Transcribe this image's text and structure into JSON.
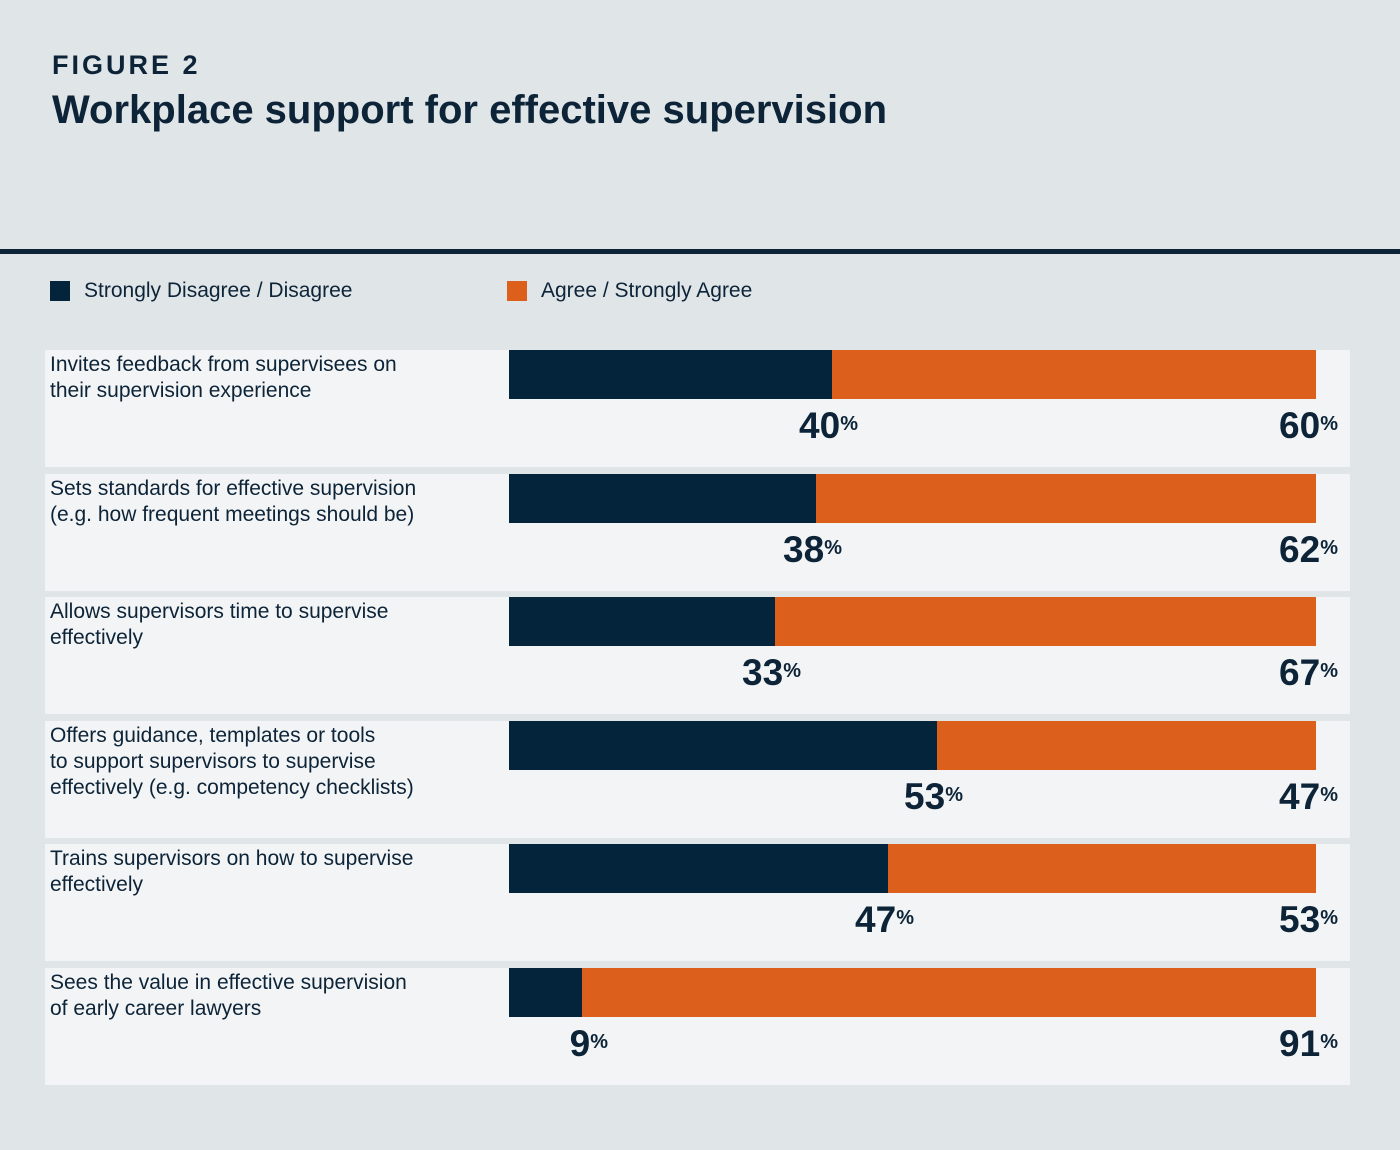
{
  "figure": {
    "label": "FIGURE 2",
    "title": "Workplace support for effective supervision"
  },
  "colors": {
    "disagree": "#03243b",
    "agree": "#dc5f1c",
    "text": "#0d2438"
  },
  "chart_data": {
    "type": "bar",
    "orientation": "horizontal",
    "stacked": true,
    "normalized_to": 100,
    "unit": "%",
    "categories": [
      "Invites feedback from supervisees on their supervision experience",
      "Sets standards for effective supervision (e.g. how frequent meetings should be)",
      "Allows supervisors time to supervise effectively",
      "Offers guidance, templates or tools to support supervisors to supervise effectively (e.g. competency checklists)",
      "Trains supervisors on how to supervise effectively",
      "Sees the value in effective supervision of early career lawyers"
    ],
    "series": [
      {
        "name": "Strongly Disagree / Disagree",
        "values": [
          40,
          38,
          33,
          53,
          47,
          9
        ]
      },
      {
        "name": "Agree / Strongly Agree",
        "values": [
          60,
          62,
          67,
          47,
          53,
          91
        ]
      }
    ],
    "legend_position": "top-left",
    "xlim": [
      0,
      100
    ]
  }
}
